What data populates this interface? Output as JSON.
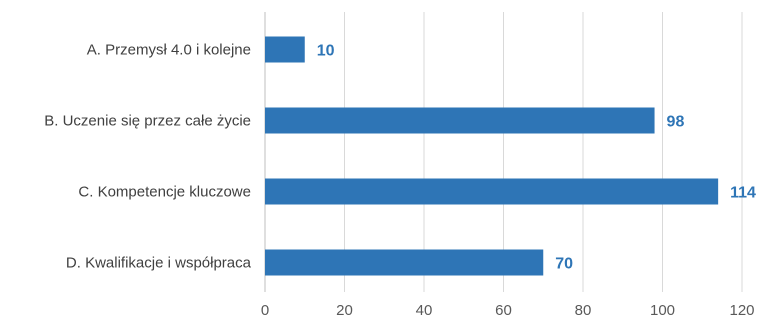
{
  "chart_data": {
    "type": "bar",
    "orientation": "horizontal",
    "categories": [
      "A. Przemysł 4.0 i kolejne",
      "B. Uczenie się przez całe życie",
      "C. Kompetencje kluczowe",
      "D. Kwalifikacje i współpraca"
    ],
    "values": [
      10,
      98,
      114,
      70
    ],
    "data_labels": [
      "10",
      "98",
      "114",
      "70"
    ],
    "title": "",
    "xlabel": "",
    "ylabel": "",
    "xlim": [
      0,
      120
    ],
    "x_ticks": [
      0,
      20,
      40,
      60,
      80,
      100,
      120
    ],
    "x_tick_labels": [
      "0",
      "20",
      "40",
      "60",
      "80",
      "100",
      "120"
    ],
    "grid": true,
    "legend": "none",
    "colors": {
      "bar": "#2e75b6",
      "data_label": "#2e75b6",
      "gridline": "#d9d9d9",
      "text": "#404040"
    }
  }
}
